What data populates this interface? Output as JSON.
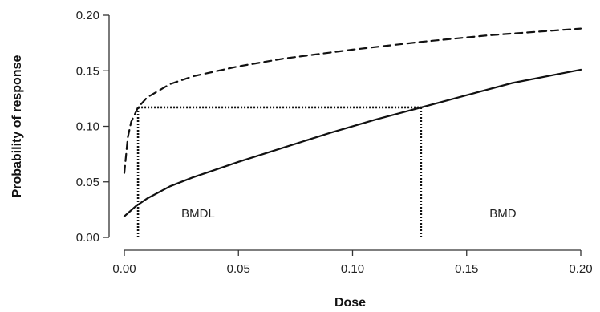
{
  "chart_data": {
    "type": "line",
    "xlabel": "Dose",
    "ylabel": "Probability of response",
    "xlim": [
      0,
      0.2
    ],
    "ylim": [
      0,
      0.2
    ],
    "x_ticks": [
      "0.00",
      "0.05",
      "0.10",
      "0.15",
      "0.20"
    ],
    "y_ticks": [
      "0.00",
      "0.05",
      "0.10",
      "0.15",
      "0.20"
    ],
    "grid": false,
    "series": [
      {
        "style": "solid",
        "color": "#111111",
        "x": [
          0,
          0.005,
          0.01,
          0.02,
          0.03,
          0.05,
          0.07,
          0.09,
          0.11,
          0.13,
          0.15,
          0.17,
          0.19,
          0.2
        ],
        "y": [
          0.019,
          0.028,
          0.035,
          0.046,
          0.054,
          0.068,
          0.081,
          0.094,
          0.106,
          0.117,
          0.128,
          0.139,
          0.147,
          0.151
        ]
      },
      {
        "style": "dashed",
        "color": "#111111",
        "x": [
          0,
          0.0015,
          0.003,
          0.006,
          0.01,
          0.02,
          0.03,
          0.05,
          0.07,
          0.1,
          0.13,
          0.16,
          0.2
        ],
        "y": [
          0.058,
          0.09,
          0.104,
          0.117,
          0.126,
          0.138,
          0.145,
          0.154,
          0.161,
          0.169,
          0.176,
          0.182,
          0.188
        ]
      }
    ],
    "reference_lines": {
      "response_level": 0.117,
      "bmdl": 0.006,
      "bmd": 0.13
    },
    "annotations": [
      {
        "text": "BMDL",
        "x": 0.025,
        "y": 0.018
      },
      {
        "text": "BMD",
        "x": 0.16,
        "y": 0.018
      }
    ]
  }
}
